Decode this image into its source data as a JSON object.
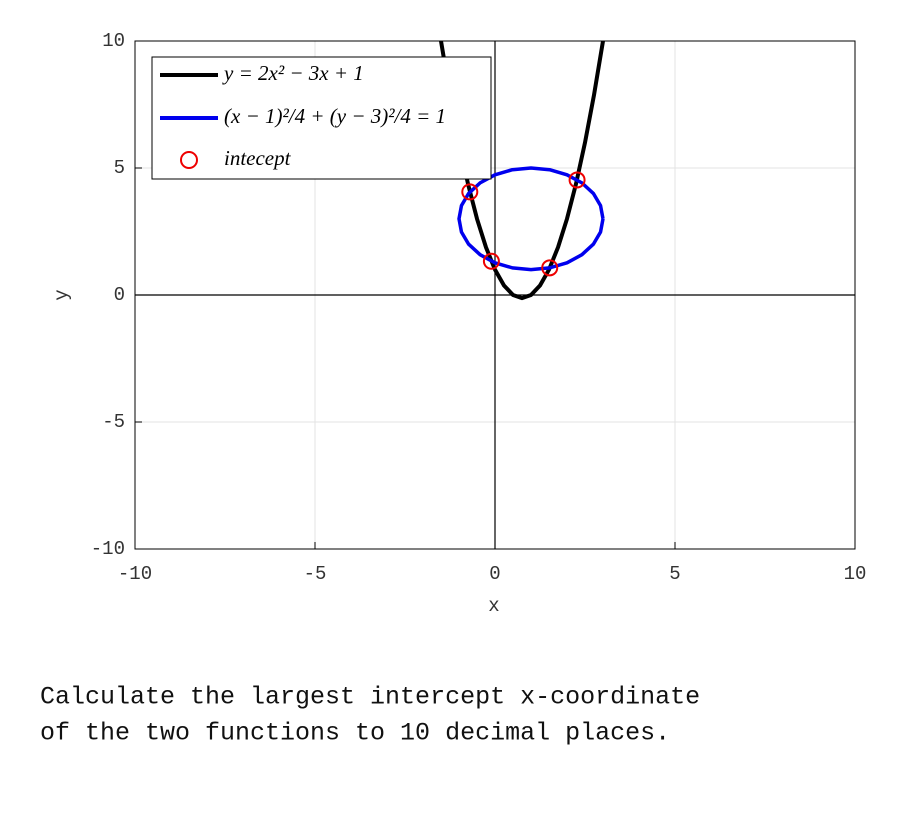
{
  "chart_data": {
    "type": "line",
    "xlabel": "x",
    "ylabel": "y",
    "xlim": [
      -10,
      10
    ],
    "ylim": [
      -10,
      10
    ],
    "xticks": [
      -10,
      -5,
      0,
      5,
      10
    ],
    "yticks": [
      -10,
      -5,
      0,
      5,
      10
    ],
    "grid": true,
    "legend": "upper left",
    "series": [
      {
        "name": "y = 2x² − 3x + 1",
        "type": "line",
        "color": "#000000",
        "x": [
          -1.5,
          -1.25,
          -1,
          -0.75,
          -0.5,
          -0.25,
          0,
          0.25,
          0.5,
          0.75,
          1,
          1.25,
          1.5,
          1.75,
          2,
          2.25,
          2.5,
          2.75,
          3
        ],
        "values": [
          10,
          7.875,
          6,
          4.375,
          3,
          1.875,
          1,
          0.375,
          0,
          -0.125,
          0,
          0.375,
          1,
          1.875,
          3,
          4.375,
          6,
          7.875,
          10
        ]
      },
      {
        "name": "(x − 1)²/4 + (y − 3)²/4 = 1",
        "type": "line",
        "color": "#0000ee",
        "x": [
          3,
          2.932,
          2.732,
          2.414,
          2,
          1.518,
          1,
          0.482,
          0,
          -0.414,
          -0.732,
          -0.932,
          -1,
          -0.932,
          -0.732,
          -0.414,
          0,
          0.482,
          1,
          1.518,
          2,
          2.414,
          2.732,
          2.932,
          3
        ],
        "values": [
          3,
          3.518,
          4,
          4.414,
          4.732,
          4.932,
          5,
          4.932,
          4.732,
          4.414,
          4,
          3.518,
          3,
          2.482,
          2,
          1.586,
          1.268,
          1.068,
          1,
          1.068,
          1.268,
          1.586,
          2,
          2.482,
          3
        ]
      },
      {
        "name": "intecept",
        "type": "scatter",
        "color": "#ee0000",
        "x": [
          -0.7,
          -0.1,
          1.52,
          2.28
        ],
        "values": [
          4.06,
          1.33,
          1.07,
          4.53
        ]
      }
    ]
  },
  "question": [
    "Calculate the largest intercept x-coordinate",
    "of the two functions to 10 decimal places."
  ]
}
